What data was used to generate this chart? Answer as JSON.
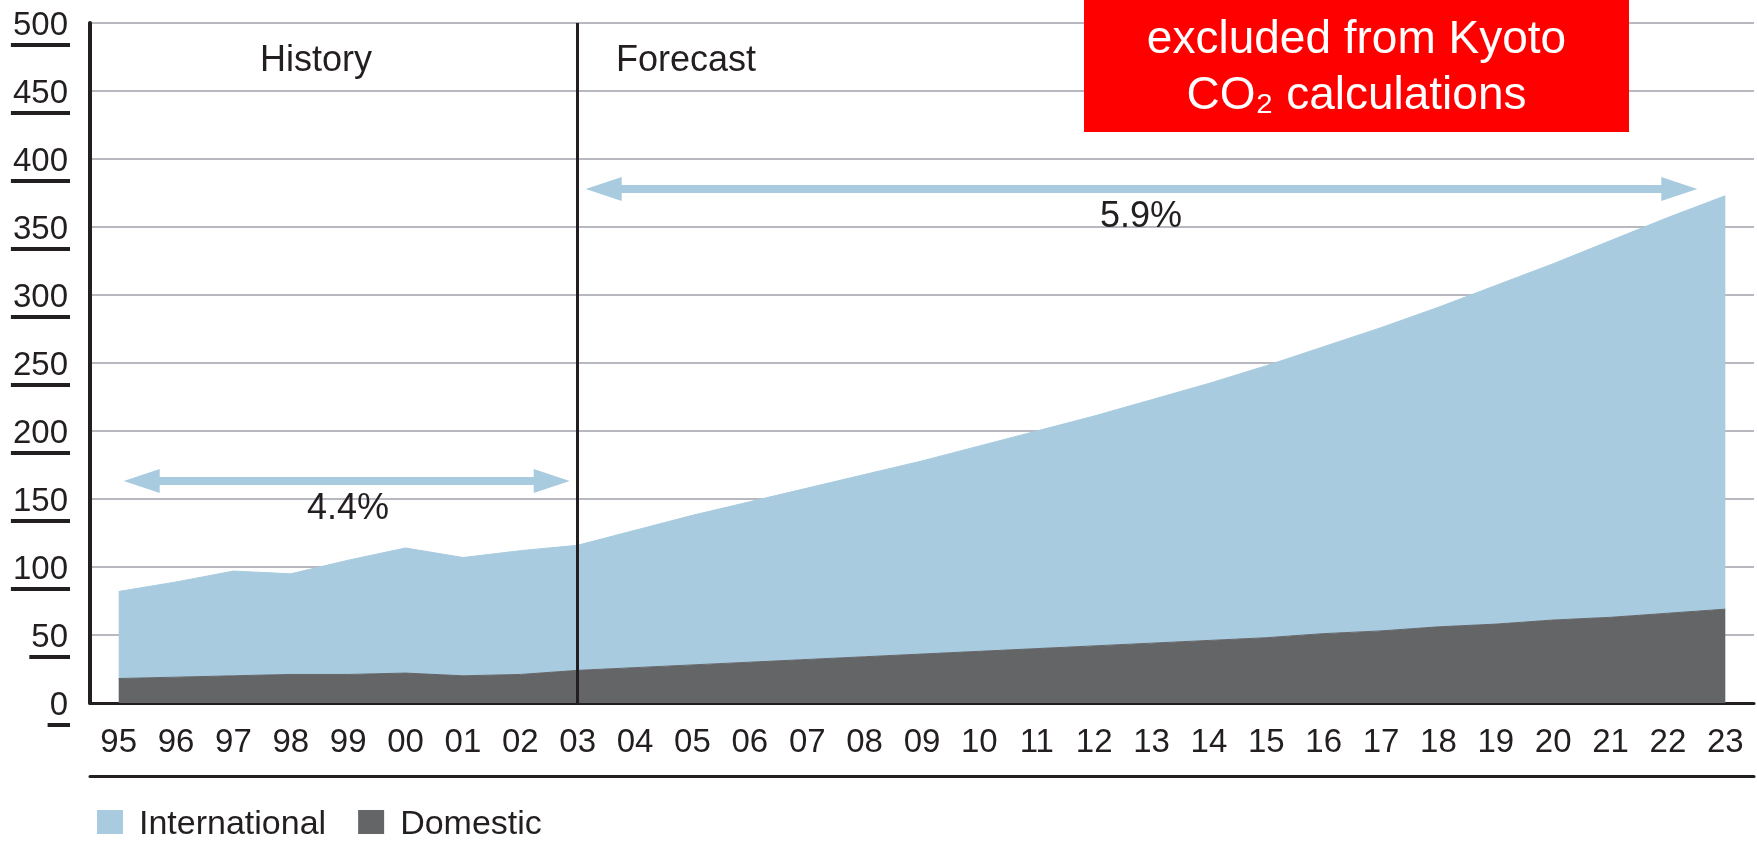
{
  "chart_data": {
    "type": "area",
    "stacked": true,
    "categories": [
      "95",
      "96",
      "97",
      "98",
      "99",
      "00",
      "01",
      "02",
      "03",
      "04",
      "05",
      "06",
      "07",
      "08",
      "09",
      "10",
      "11",
      "12",
      "13",
      "14",
      "15",
      "16",
      "17",
      "18",
      "19",
      "20",
      "21",
      "22",
      "23"
    ],
    "series": [
      {
        "name": "Domestic",
        "color": "#646567",
        "values": [
          18,
          19,
          20,
          21,
          21,
          22,
          20,
          21,
          24,
          26,
          28,
          30,
          32,
          34,
          36,
          38,
          40,
          42,
          44,
          46,
          48,
          51,
          53,
          56,
          58,
          61,
          63,
          66,
          69
        ]
      },
      {
        "name": "International",
        "color": "#a8cbdf",
        "values": [
          64,
          70,
          77,
          74,
          84,
          92,
          87,
          91,
          92,
          101,
          110,
          118,
          126,
          134,
          142,
          151,
          160,
          169,
          179,
          189,
          200,
          211,
          223,
          235,
          249,
          262,
          277,
          291,
          304
        ]
      }
    ],
    "ylim": [
      0,
      500
    ],
    "yticks": [
      0,
      50,
      100,
      150,
      200,
      250,
      300,
      350,
      400,
      450,
      500
    ],
    "grid": "y",
    "legend": "bottom left",
    "ref_lines": [
      {
        "axis": "x",
        "value": "03",
        "color": "#231f20"
      }
    ],
    "annotations": [
      "History",
      "Forecast",
      "4.4%",
      "5.9%",
      "excluded from Kyoto CO₂ calculations"
    ]
  }
}
